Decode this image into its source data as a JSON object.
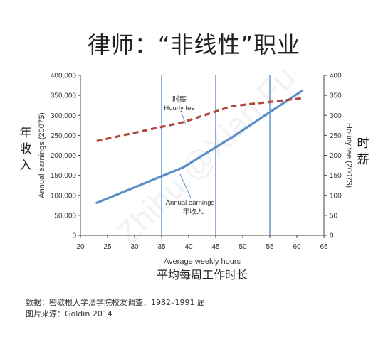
{
  "title": "律师：“非线性”职业",
  "chart_data": {
    "type": "line",
    "title": "律师：“非线性”职业",
    "xlabel": "Average weekly hours",
    "xlabel_cn": "平均每周工作时长",
    "ylabel_left": "Annual earnings (2007$)",
    "ylabel_left_cn": "年收入",
    "ylabel_right": "Hourly fee (2007$)",
    "ylabel_right_cn": "时薪",
    "xlim": [
      20,
      65
    ],
    "ylim_left": [
      0,
      400000
    ],
    "ylim_right": [
      0,
      400
    ],
    "x_ticks": [
      "20",
      "25",
      "30",
      "35",
      "40",
      "45",
      "50",
      "55",
      "60",
      "65"
    ],
    "y_left_ticks": [
      "0",
      "50,000",
      "100,000",
      "150,000",
      "200,000",
      "250,000",
      "300,000",
      "350,000",
      "400,000"
    ],
    "y_right_ticks": [
      "0",
      "50",
      "100",
      "150",
      "200",
      "250",
      "300",
      "350",
      "400"
    ],
    "vlines": [
      35,
      45,
      55
    ],
    "grid": false,
    "series": [
      {
        "name": "Annual earnings",
        "name_cn": "年收入",
        "axis": "left",
        "style": "solid",
        "color": "#5b8fc7",
        "x": [
          23,
          39,
          48,
          61
        ],
        "y": [
          81000,
          170000,
          245000,
          362000
        ]
      },
      {
        "name": "Hourly fee",
        "name_cn": "时薪",
        "axis": "right",
        "style": "dashed",
        "color": "#b04a3f",
        "x": [
          23,
          39,
          48,
          61
        ],
        "y": [
          236,
          283,
          323,
          343
        ]
      }
    ]
  },
  "footer": {
    "source": "数据：密歇根大学法学院校友调查，1982–1991 届",
    "credit": "图片来源：Goldin 2014"
  },
  "watermark": "Zhihu @Xian Fu"
}
